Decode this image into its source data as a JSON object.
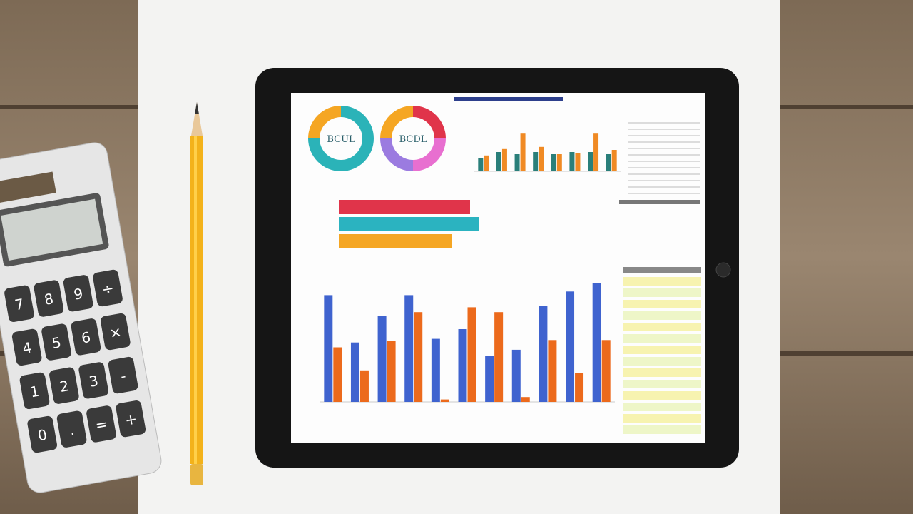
{
  "calculator": {
    "keys": [
      "7",
      "8",
      "9",
      "÷",
      "4",
      "5",
      "6",
      "×",
      "1",
      "2",
      "3",
      "-",
      "0",
      ".",
      "=",
      "+"
    ]
  },
  "tablet": {
    "donuts": [
      {
        "label": "BCUL",
        "segments": [
          {
            "color": "#f5a623",
            "value": 25
          },
          {
            "color": "#2bb3b8",
            "value": 75
          }
        ]
      },
      {
        "label": "BCDL",
        "segments": [
          {
            "color": "#e0344a",
            "value": 25
          },
          {
            "color": "#e86fd0",
            "value": 25
          },
          {
            "color": "#9b7be0",
            "value": 25
          },
          {
            "color": "#f5a623",
            "value": 25
          }
        ]
      }
    ],
    "top_chart": {
      "ylim": [
        0,
        100
      ],
      "series": [
        {
          "color": "#2a7f7a",
          "values": [
            30,
            45,
            40,
            45,
            40,
            45,
            45,
            40
          ]
        },
        {
          "color": "#f08a24",
          "values": [
            37,
            52,
            88,
            57,
            40,
            42,
            88,
            50
          ]
        }
      ]
    },
    "hbar_chart": {
      "xlim": [
        0,
        100
      ],
      "colors": [
        "#e0344a",
        "#2bb3c0",
        "#f5a623"
      ],
      "values": [
        92,
        98,
        79
      ]
    },
    "bottom_chart": {
      "ylim": [
        0,
        100
      ],
      "series": [
        {
          "color": "#3f63cf",
          "values": [
            88,
            49,
            71,
            88,
            52,
            60,
            38,
            43,
            79,
            91,
            98
          ]
        },
        {
          "color": "#ec6a1c",
          "values": [
            45,
            26,
            50,
            74,
            2,
            78,
            74,
            4,
            51,
            24,
            51
          ]
        }
      ]
    }
  }
}
